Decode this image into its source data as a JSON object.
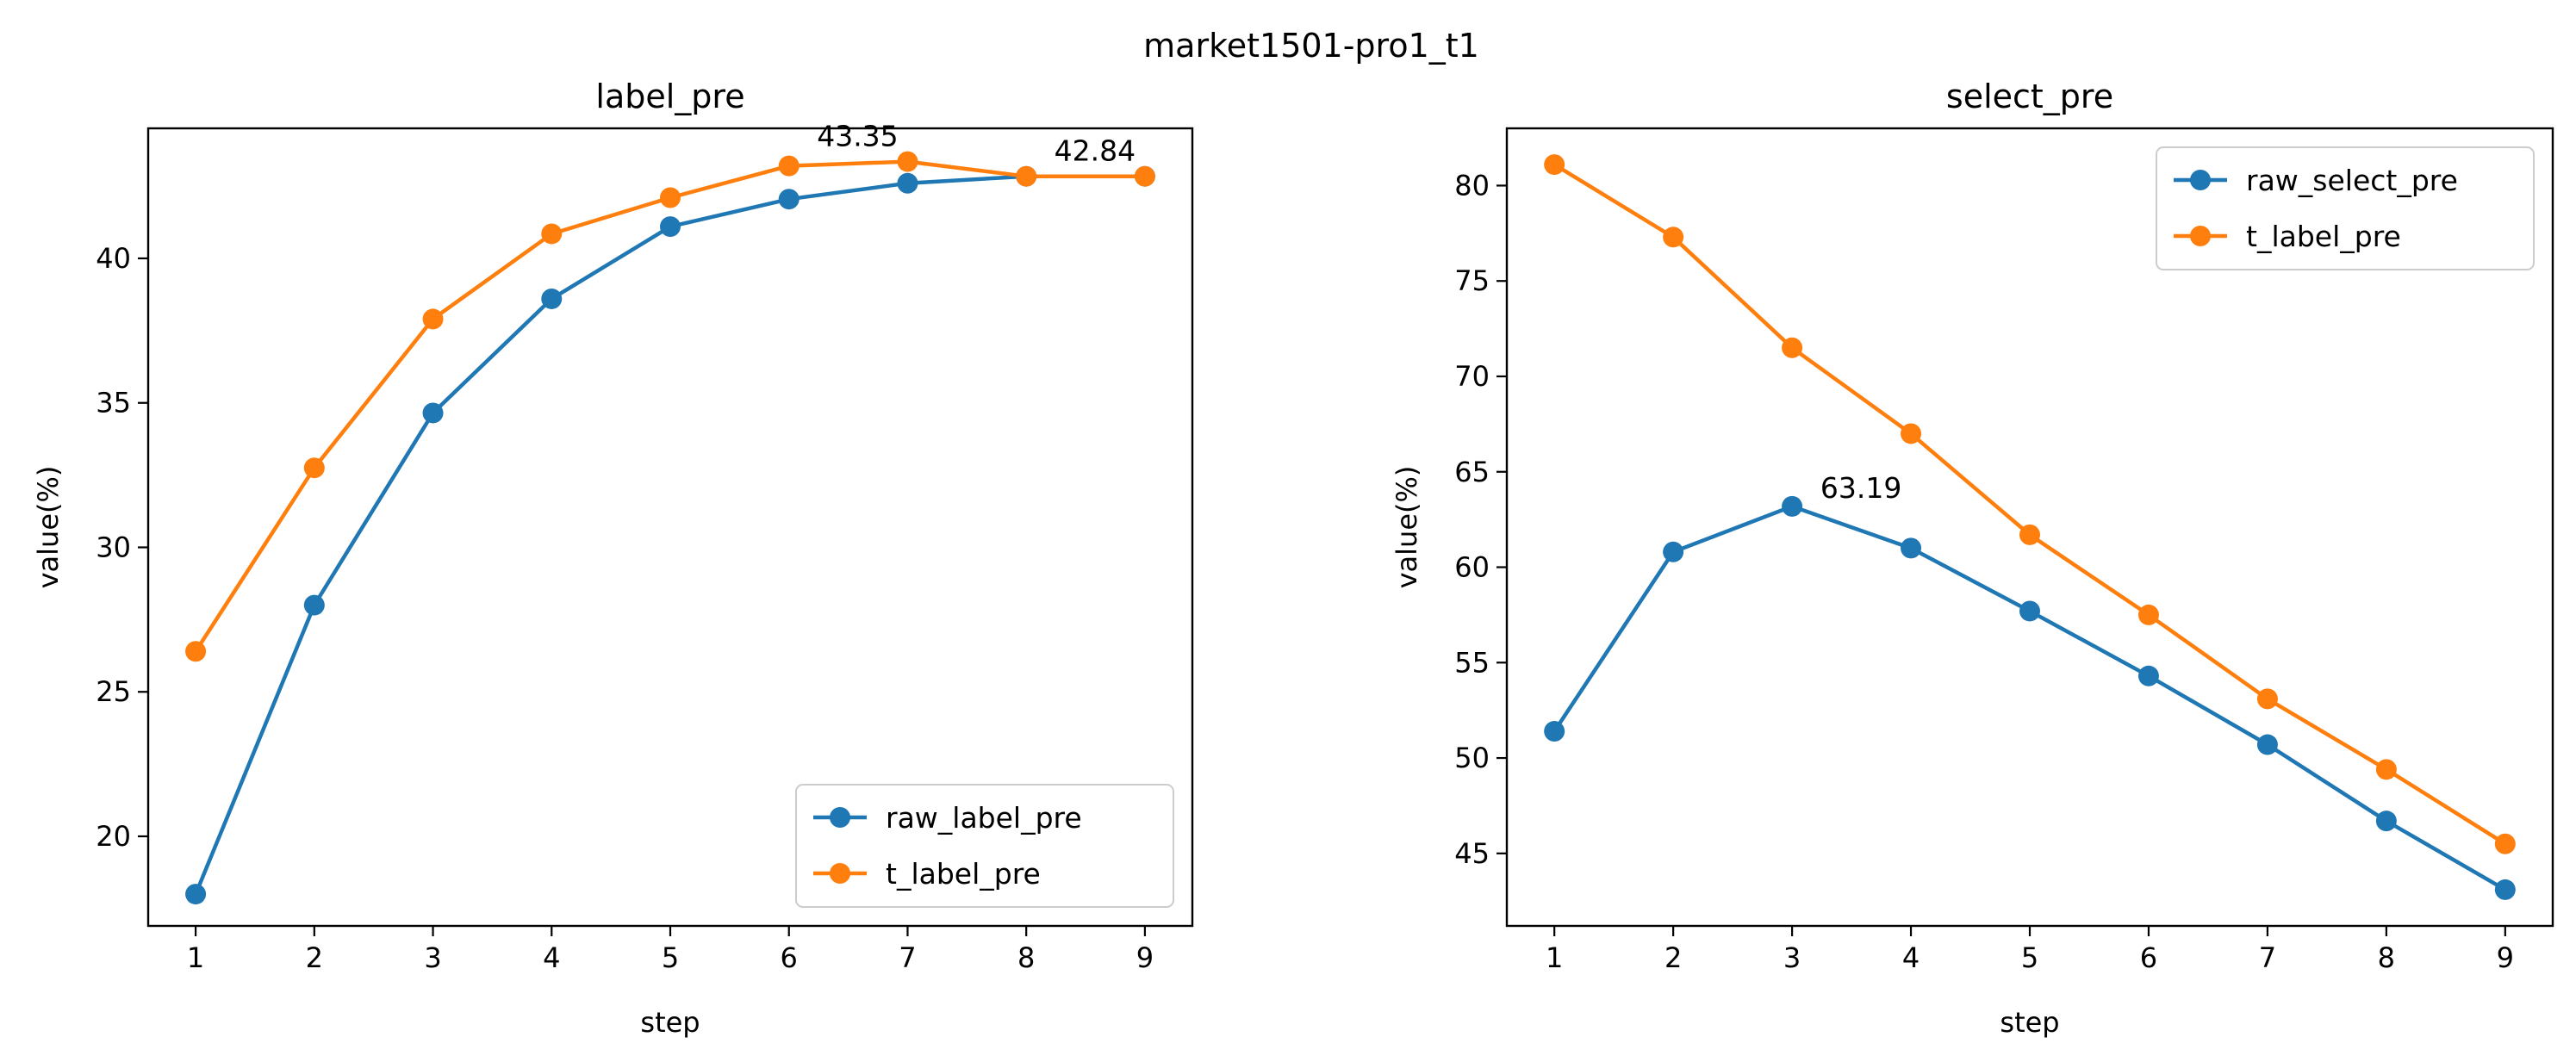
{
  "suptitle": "market1501-pro1_t1",
  "colors": {
    "blue": "#1f77b4",
    "orange": "#ff7f0e"
  },
  "chart_data": [
    {
      "type": "line",
      "title": "label_pre",
      "xlabel": "step",
      "ylabel": "value(%)",
      "x": [
        1,
        2,
        3,
        4,
        5,
        6,
        7,
        8,
        9
      ],
      "xlim": [
        0.6,
        9.4
      ],
      "ylim": [
        16.9,
        44.5
      ],
      "yticks": [
        20,
        25,
        30,
        35,
        40
      ],
      "legend_loc": "lower right",
      "series": [
        {
          "name": "raw_label_pre",
          "color": "#1f77b4",
          "marker": "circle",
          "values": [
            18.0,
            28.0,
            34.65,
            38.6,
            41.1,
            42.05,
            42.6,
            42.84,
            42.84
          ]
        },
        {
          "name": "t_label_pre",
          "color": "#ff7f0e",
          "marker": "circle",
          "values": [
            26.4,
            32.75,
            37.9,
            40.85,
            42.1,
            43.2,
            43.35,
            42.84,
            42.84
          ]
        }
      ],
      "annotations": [
        {
          "text": "43.35",
          "x": 7,
          "y": 43.35
        },
        {
          "text": "42.84",
          "x": 9,
          "y": 42.84
        }
      ]
    },
    {
      "type": "line",
      "title": "select_pre",
      "xlabel": "step",
      "ylabel": "value(%)",
      "x": [
        1,
        2,
        3,
        4,
        5,
        6,
        7,
        8,
        9
      ],
      "xlim": [
        0.6,
        9.4
      ],
      "ylim": [
        41.2,
        83.0
      ],
      "yticks": [
        45,
        50,
        55,
        60,
        65,
        70,
        75,
        80
      ],
      "legend_loc": "upper right",
      "series": [
        {
          "name": "raw_select_pre",
          "color": "#1f77b4",
          "marker": "circle",
          "values": [
            51.4,
            60.8,
            63.19,
            61.0,
            57.7,
            54.3,
            50.7,
            46.7,
            43.1
          ]
        },
        {
          "name": "t_label_pre",
          "color": "#ff7f0e",
          "marker": "circle",
          "values": [
            81.1,
            77.3,
            71.5,
            67.0,
            61.7,
            57.5,
            53.1,
            49.4,
            45.5
          ]
        }
      ],
      "annotations": [
        {
          "text": "63.19",
          "x": 3,
          "y": 63.19
        }
      ]
    }
  ]
}
